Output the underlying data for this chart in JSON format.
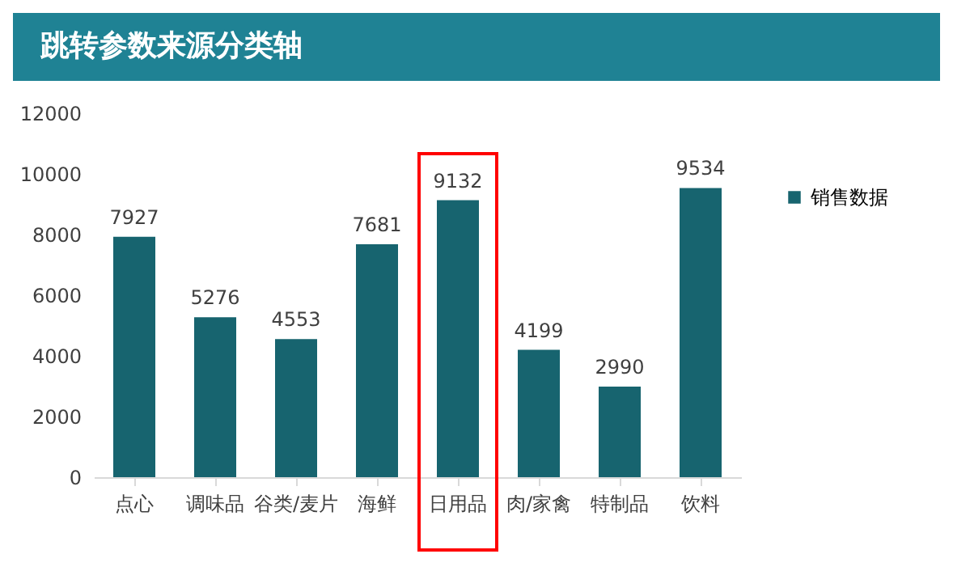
{
  "chart_data": {
    "type": "bar",
    "title": "跳转参数来源分类轴",
    "categories": [
      "点心",
      "调味品",
      "谷类/麦片",
      "海鲜",
      "日用品",
      "肉/家禽",
      "特制品",
      "饮料"
    ],
    "series": [
      {
        "name": "销售数据",
        "color": "#17646f",
        "values": [
          7927,
          5276,
          4553,
          7681,
          9132,
          4199,
          2990,
          9534
        ]
      }
    ],
    "ylim": [
      0,
      12000
    ],
    "yticks": [
      0,
      2000,
      4000,
      6000,
      8000,
      10000,
      12000
    ],
    "data_labels": true,
    "grid": false,
    "legend": "right"
  }
}
